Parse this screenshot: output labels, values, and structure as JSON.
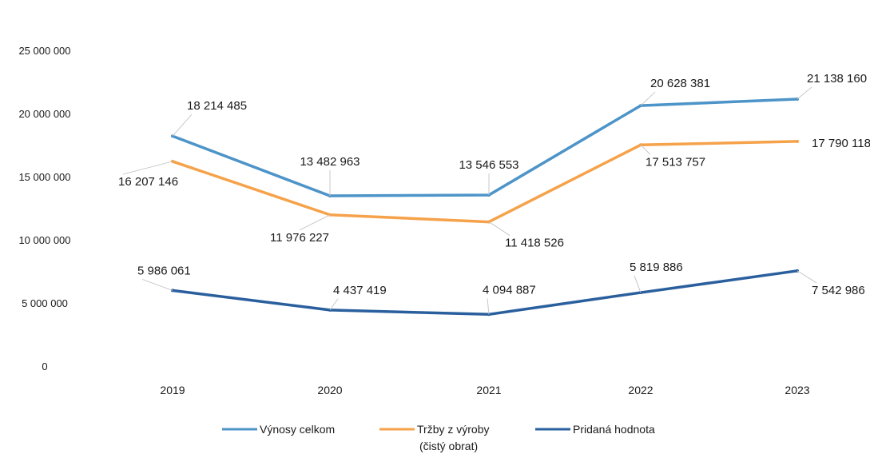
{
  "chart_data": {
    "type": "line",
    "title": "",
    "xlabel": "",
    "ylabel": "",
    "ylim": [
      0,
      25000000
    ],
    "yticks": [
      0,
      5000000,
      10000000,
      15000000,
      20000000,
      25000000
    ],
    "ytick_labels": [
      "0",
      "5 000 000",
      "10 000 000",
      "15 000 000",
      "20 000 000",
      "25 000 000"
    ],
    "categories": [
      "2019",
      "2020",
      "2021",
      "2022",
      "2023"
    ],
    "grid": false,
    "legend_position": "bottom",
    "series": [
      {
        "name": "Výnosy celkom",
        "color": "#4d94c8",
        "values": [
          18214485,
          13482963,
          13546553,
          20628381,
          21138160
        ],
        "labels": [
          "18 214 485",
          "13 482 963",
          "13 546 553",
          "20 628 381",
          "21 138 160"
        ]
      },
      {
        "name": "Tržby z výroby (čistý obrat)",
        "color": "#f5a24a",
        "values": [
          16207146,
          11976227,
          11418526,
          17513757,
          17790118
        ],
        "labels": [
          "16 207 146",
          "11 976 227",
          "11 418 526",
          "17 513 757",
          "17 790 118"
        ]
      },
      {
        "name": "Pridaná hodnota",
        "color": "#2a5f9e",
        "values": [
          5986061,
          4437419,
          4094887,
          5819886,
          7542986
        ],
        "labels": [
          "5 986 061",
          "4 437 419",
          "4 094 887",
          "5 819 886",
          "7 542 986"
        ]
      }
    ]
  }
}
